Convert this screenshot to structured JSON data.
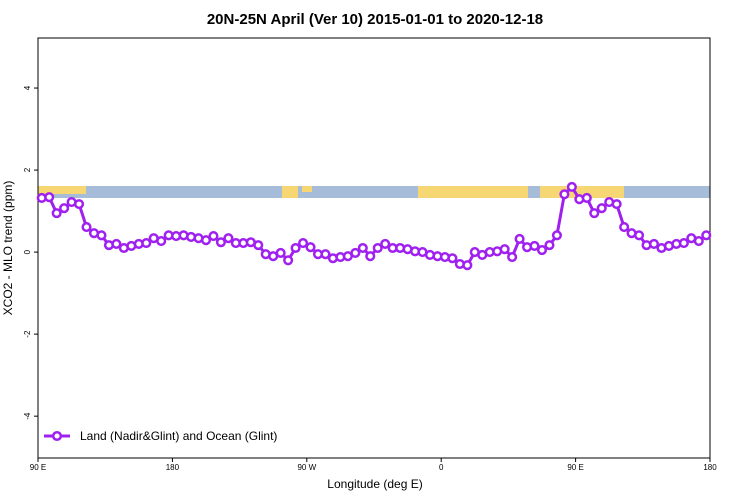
{
  "chart_data": {
    "type": "line",
    "title": "20N-25N April (Ver 10)   2015-01-01 to 2020-12-18",
    "x_label": "Longitude (deg E)",
    "y_label": "XCO2 - MLO trend (ppm)",
    "x": [
      92.5,
      97.5,
      102.5,
      107.5,
      112.5,
      117.5,
      122.5,
      127.5,
      132.5,
      137.5,
      142.5,
      147.5,
      152.5,
      157.5,
      162.5,
      167.5,
      172.5,
      177.5,
      182.5,
      187.5,
      192.5,
      197.5,
      202.5,
      207.5,
      212.5,
      217.5,
      222.5,
      227.5,
      232.5,
      237.5,
      242.5,
      247.5,
      252.5,
      257.5,
      262.5,
      267.5,
      272.5,
      277.5,
      282.5,
      287.5,
      292.5,
      297.5,
      302.5,
      307.5,
      312.5,
      317.5,
      322.5,
      327.5,
      332.5,
      337.5,
      342.5,
      347.5,
      352.5,
      357.5,
      362.5,
      367.5,
      372.5,
      377.5,
      382.5,
      387.5,
      392.5,
      397.5,
      402.5,
      407.5,
      412.5,
      417.5,
      422.5,
      427.5,
      432.5,
      437.5,
      442.5,
      447.5,
      452.5,
      457.5,
      462.5,
      467.5,
      472.5,
      477.5,
      482.5,
      487.5,
      492.5,
      497.5,
      502.5,
      507.5,
      512.5,
      517.5,
      522.5,
      527.5,
      532.5,
      537.5
    ],
    "series": [
      {
        "name": "Land (Nadir&Glint) and Ocean (Glint)",
        "color": "#a020f0",
        "values": [
          1.32,
          1.34,
          0.95,
          1.07,
          1.22,
          1.17,
          0.61,
          0.46,
          0.41,
          0.17,
          0.2,
          0.1,
          0.15,
          0.2,
          0.22,
          0.34,
          0.27,
          0.41,
          0.39,
          0.41,
          0.37,
          0.34,
          0.29,
          0.39,
          0.24,
          0.34,
          0.22,
          0.22,
          0.24,
          0.17,
          -0.05,
          -0.1,
          -0.02,
          -0.2,
          0.1,
          0.22,
          0.12,
          -0.05,
          -0.05,
          -0.15,
          -0.12,
          -0.1,
          -0.02,
          0.1,
          -0.1,
          0.1,
          0.2,
          0.1,
          0.1,
          0.07,
          0.02,
          0,
          -0.07,
          -0.1,
          -0.12,
          -0.15,
          -0.29,
          -0.32,
          0,
          -0.07,
          0,
          0.02,
          0.07,
          -0.12,
          0.32,
          0.12,
          0.15,
          0.05,
          0.17,
          0.41,
          1.41,
          1.59,
          1.29,
          1.32,
          0.95,
          1.07,
          1.22,
          1.17,
          0.61,
          0.46,
          0.41,
          0.17,
          0.2,
          0.1,
          0.15,
          0.2,
          0.22,
          0.34,
          0.27,
          0.41
        ]
      }
    ],
    "xlim": [
      90,
      540
    ],
    "xticks": [
      {
        "value": 90,
        "label": "90 E"
      },
      180,
      {
        "value": 270,
        "label": "90 W"
      },
      {
        "value": 360,
        "label": "0"
      },
      {
        "value": 450,
        "label": "90 E"
      },
      {
        "value": 540,
        "label": "180"
      }
    ],
    "ylim": [
      -5.02,
      5.22
    ],
    "yticks": [
      -4,
      -2,
      0,
      2,
      4
    ],
    "legend": "bottom-left"
  }
}
